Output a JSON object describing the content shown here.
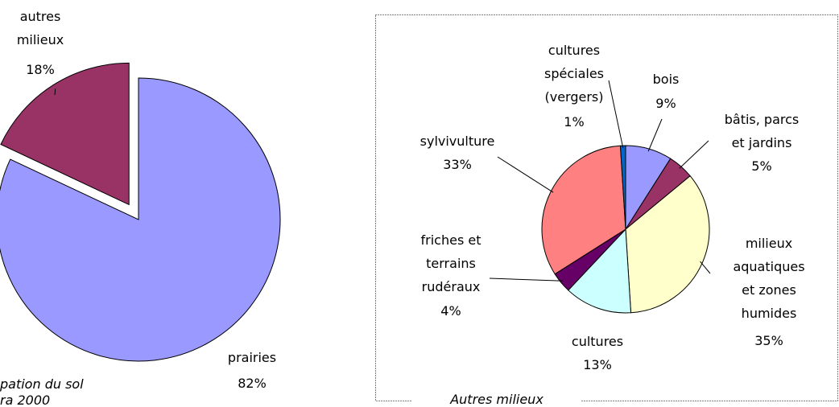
{
  "chart_data": [
    {
      "type": "pie",
      "title": "pation du sol",
      "subtitle": "ra 2000",
      "categories": [
        "prairies",
        "autres\nmilieux"
      ],
      "values": [
        82,
        18
      ],
      "value_labels": [
        "82%",
        "18%"
      ],
      "colors": [
        "#9999ff",
        "#993366"
      ],
      "explode": [
        false,
        true
      ]
    },
    {
      "type": "pie",
      "title": "Autres milieux",
      "categories": [
        "bois",
        "bâtis, parcs\net jardins",
        "milieux\naquatiques\net zones\nhumides",
        "cultures",
        "friches et\nterrains\nrudéraux",
        "sylvivulture",
        "cultures\nspéciales\n(vergers)"
      ],
      "values": [
        9,
        5,
        35,
        13,
        4,
        33,
        1
      ],
      "value_labels": [
        "9%",
        "5%",
        "35%",
        "13%",
        "4%",
        "33%",
        "1%"
      ],
      "colors": [
        "#9999ff",
        "#993366",
        "#ffffcc",
        "#ccffff",
        "#660066",
        "#ff8080",
        "#0066cc"
      ]
    }
  ]
}
